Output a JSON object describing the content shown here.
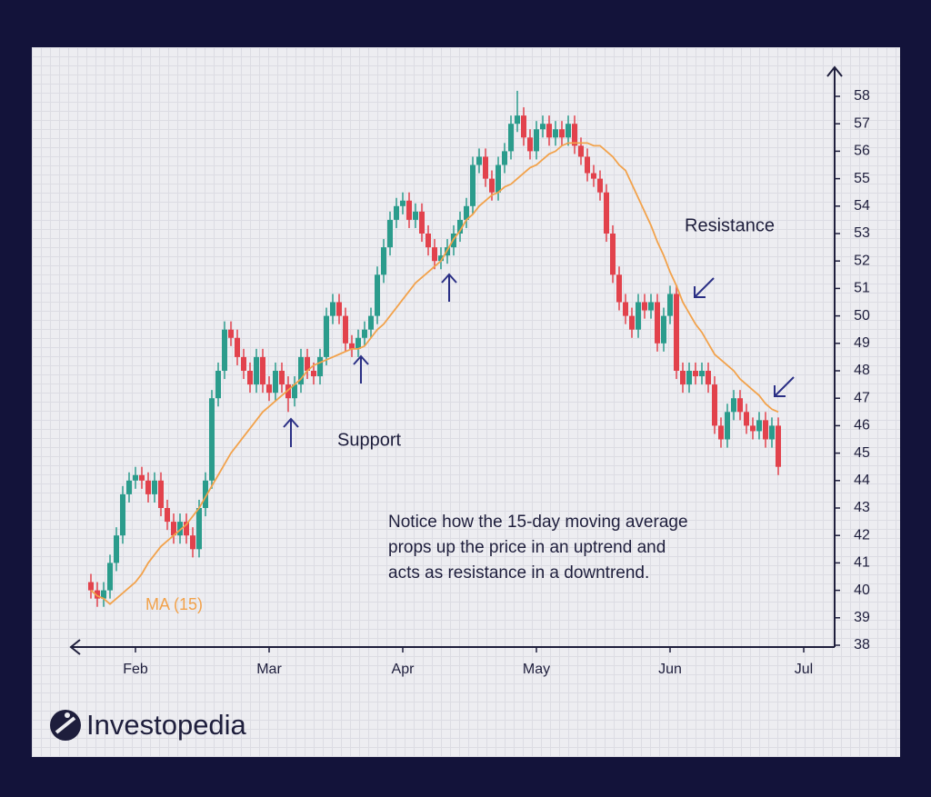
{
  "chart_data": {
    "type": "candlestick",
    "categories": [
      null,
      null,
      null,
      null,
      null,
      null,
      null,
      "Feb",
      null,
      null,
      null,
      null,
      null,
      null,
      null,
      null,
      null,
      null,
      null,
      null,
      null,
      null,
      null,
      null,
      null,
      null,
      null,
      null,
      "Mar",
      null,
      null,
      null,
      null,
      null,
      null,
      null,
      null,
      null,
      null,
      null,
      null,
      null,
      null,
      null,
      null,
      null,
      null,
      null,
      null,
      "Apr",
      null,
      null,
      null,
      null,
      null,
      null,
      null,
      null,
      null,
      null,
      null,
      null,
      null,
      null,
      null,
      null,
      null,
      null,
      null,
      null,
      "May",
      null,
      null,
      null,
      null,
      null,
      null,
      null,
      null,
      null,
      null,
      null,
      null,
      null,
      null,
      null,
      null,
      null,
      null,
      null,
      null,
      "Jun",
      null,
      null,
      null,
      null,
      null,
      null,
      null,
      null,
      null,
      null,
      null,
      null,
      null,
      null,
      null,
      null,
      null,
      null,
      null,
      null,
      "Jul"
    ],
    "open": [
      40.3,
      40,
      39.7,
      40,
      41,
      42,
      43.5,
      44,
      44.2,
      44,
      43.5,
      44,
      43,
      42.5,
      42,
      42.5,
      42,
      41.5,
      43,
      44,
      47,
      48,
      49.5,
      49.2,
      48.5,
      48,
      47.5,
      48.5,
      47.5,
      47.2,
      48,
      47.5,
      47,
      47.5,
      48.5,
      48,
      47.8,
      48.5,
      50,
      50.5,
      50,
      49,
      48.8,
      49.2,
      49.5,
      50,
      51.5,
      52.5,
      53.5,
      54,
      54.2,
      53.5,
      53.8,
      53,
      52.5,
      52,
      52.2,
      52.5,
      53,
      53.5,
      54,
      55.5,
      55.8,
      55,
      54.5,
      55.5,
      56,
      57,
      57.3,
      56.5,
      56,
      56.8,
      57,
      56.5,
      56.8,
      56.5,
      57,
      56.2,
      55.8,
      55.2,
      55,
      54.5,
      53,
      51.5,
      50.5,
      50,
      49.5,
      50.5,
      50.2,
      50.5,
      49,
      50,
      50.8,
      48,
      47.5,
      48,
      47.8,
      48,
      47.5,
      46,
      45.5,
      46.5,
      47,
      46.5,
      46,
      45.8,
      46.2,
      45.5,
      46,
      null,
      null,
      null,
      null
    ],
    "high": [
      40.6,
      40.3,
      40.3,
      41.3,
      42.3,
      43.8,
      44.3,
      44.5,
      44.5,
      44.3,
      44.3,
      44.3,
      43.3,
      42.8,
      42.8,
      42.8,
      42.3,
      43.3,
      44.3,
      47.3,
      48.3,
      49.8,
      49.8,
      49.5,
      48.8,
      48.3,
      48.8,
      48.8,
      47.8,
      48.3,
      48.3,
      47.8,
      47.8,
      48.8,
      48.8,
      48.3,
      48.8,
      50.3,
      50.8,
      50.8,
      50.3,
      49.3,
      49.5,
      49.8,
      50.3,
      51.8,
      52.8,
      53.8,
      54.3,
      54.5,
      54.5,
      54.1,
      54.1,
      53.3,
      52.8,
      52.5,
      52.8,
      53.3,
      53.8,
      54.3,
      55.8,
      56.1,
      56.1,
      55.3,
      55.8,
      56.3,
      57.3,
      58.2,
      57.6,
      56.8,
      57.1,
      57.3,
      57.3,
      57.1,
      57.1,
      57.3,
      57.3,
      56.5,
      56.1,
      55.5,
      55.3,
      54.8,
      53.3,
      51.8,
      50.8,
      50.3,
      50.8,
      50.8,
      50.8,
      50.8,
      50.3,
      51.1,
      51.1,
      48.3,
      48.3,
      48.3,
      48.3,
      48.3,
      47.8,
      46.3,
      46.8,
      47.3,
      47.3,
      46.8,
      46.3,
      46.5,
      46.5,
      46.3,
      46.3,
      null,
      null,
      null,
      null
    ],
    "low": [
      39.7,
      39.4,
      39.4,
      39.7,
      40.7,
      41.7,
      43.2,
      43.7,
      43.7,
      43.2,
      43.2,
      42.7,
      42.2,
      41.7,
      41.7,
      41.7,
      41.2,
      41.2,
      42.7,
      43.7,
      46.7,
      47.7,
      48.9,
      48.2,
      47.7,
      47.2,
      47.2,
      47.2,
      46.9,
      46.9,
      47.2,
      46.5,
      46.7,
      47.2,
      47.7,
      47.5,
      47.5,
      48.2,
      49.7,
      49.7,
      48.7,
      48.5,
      48.5,
      48.9,
      49.2,
      49.7,
      51.2,
      52.2,
      53.2,
      53.7,
      53.2,
      53.2,
      52.7,
      52.2,
      51.7,
      51.7,
      51.9,
      52.2,
      52.7,
      53.2,
      53.7,
      55.2,
      54.7,
      54.2,
      54.2,
      55.2,
      55.7,
      56.7,
      56.2,
      55.7,
      55.7,
      56.5,
      56.2,
      56.2,
      56.2,
      56.2,
      55.9,
      55.5,
      54.9,
      54.7,
      54.2,
      52.7,
      51.2,
      50.2,
      49.7,
      49.2,
      49.2,
      49.9,
      49.9,
      48.7,
      48.7,
      49.7,
      47.7,
      47.2,
      47.2,
      47.5,
      47.5,
      47.2,
      45.7,
      45.2,
      45.2,
      46.2,
      46.2,
      45.7,
      45.5,
      45.5,
      45.2,
      45.2,
      44.2,
      null,
      null,
      null,
      null
    ],
    "close": [
      40,
      39.7,
      40,
      41,
      42,
      43.5,
      44,
      44.2,
      44,
      43.5,
      44,
      43,
      42.5,
      42,
      42.5,
      42,
      41.5,
      43,
      44,
      47,
      48,
      49.5,
      49.2,
      48.5,
      48,
      47.5,
      48.5,
      47.5,
      47.2,
      48,
      47.5,
      47,
      47.5,
      48.5,
      48,
      47.8,
      48.5,
      50,
      50.5,
      50,
      49,
      48.8,
      49.2,
      49.5,
      50,
      51.5,
      52.5,
      53.5,
      54,
      54.2,
      53.5,
      53.8,
      53,
      52.5,
      52,
      52.2,
      52.5,
      53,
      53.5,
      54,
      55.5,
      55.8,
      55,
      54.5,
      55.5,
      56,
      57,
      57.3,
      56.5,
      56,
      56.8,
      57,
      56.5,
      56.8,
      56.5,
      57,
      56.2,
      55.8,
      55.2,
      55,
      54.5,
      53,
      51.5,
      50.5,
      50,
      49.5,
      50.5,
      50.2,
      50.5,
      49,
      50,
      50.8,
      48,
      47.5,
      48,
      47.8,
      48,
      47.5,
      46,
      45.5,
      46.5,
      47,
      46.5,
      46,
      45.8,
      46.2,
      45.5,
      46,
      44.5,
      null,
      null,
      null,
      null
    ],
    "up_color": "#2b9c8c",
    "down_color": "#e2424c",
    "ma": {
      "name": "MA (15)",
      "color": "#f2a24b",
      "values": [
        40,
        39.8,
        39.7,
        39.5,
        39.7,
        39.9,
        40.1,
        40.3,
        40.6,
        41,
        41.3,
        41.6,
        41.8,
        42,
        42.2,
        42.4,
        42.7,
        43,
        43.4,
        43.8,
        44.2,
        44.6,
        45,
        45.3,
        45.6,
        45.9,
        46.2,
        46.5,
        46.7,
        46.9,
        47.1,
        47.3,
        47.5,
        47.7,
        48,
        48.2,
        48.3,
        48.4,
        48.5,
        48.6,
        48.7,
        48.8,
        48.8,
        48.9,
        49.2,
        49.5,
        49.7,
        50,
        50.3,
        50.6,
        50.9,
        51.2,
        51.4,
        51.6,
        51.8,
        52,
        52.4,
        52.8,
        53.1,
        53.5,
        53.7,
        54,
        54.2,
        54.4,
        54.5,
        54.7,
        54.8,
        55,
        55.2,
        55.4,
        55.5,
        55.7,
        55.9,
        56,
        56.2,
        56.3,
        56.3,
        56.3,
        56.3,
        56.2,
        56.2,
        56,
        55.8,
        55.5,
        55.3,
        54.8,
        54.3,
        53.8,
        53.3,
        52.7,
        52.2,
        51.6,
        51.1,
        50.5,
        50.1,
        49.7,
        49.4,
        49,
        48.6,
        48.4,
        48.2,
        48,
        47.7,
        47.5,
        47.3,
        47.1,
        46.8,
        46.6,
        46.5,
        null,
        null,
        null,
        null
      ]
    },
    "ylim": [
      38,
      58
    ],
    "yticks": [
      38,
      39,
      40,
      41,
      42,
      43,
      44,
      45,
      46,
      47,
      48,
      49,
      50,
      51,
      52,
      53,
      54,
      55,
      56,
      57,
      58
    ],
    "annotations": {
      "support": "Support",
      "resistance": "Resistance",
      "note": [
        "Notice how the 15-day moving average",
        "props up the price in an uptrend and",
        "acts as resistance in a downtrend."
      ]
    },
    "brand": "Investopedia"
  }
}
